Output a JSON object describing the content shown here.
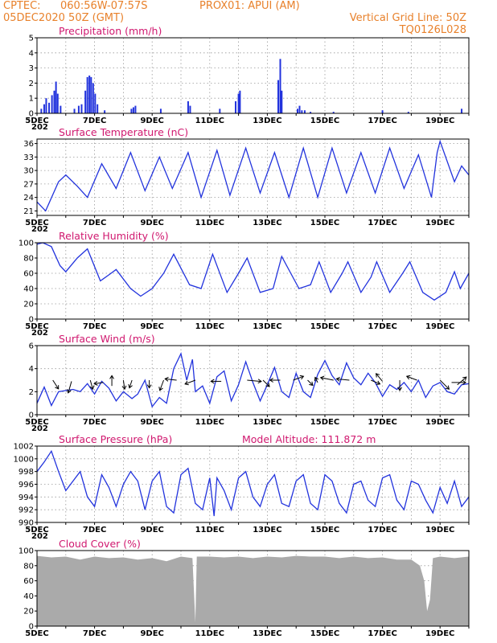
{
  "header": {
    "source": "CPTEC:",
    "location": "060:56W-07:57S",
    "station": "PROX01: APUI (AM)",
    "date": "05DEC2020 50Z (GMT)",
    "grid_note": "Vertical Grid Line: 50Z",
    "code": "TQ0126L028"
  },
  "colors": {
    "header": "#e8812b",
    "title": "#d0186f",
    "series": "#2233dd",
    "cloud": "#aaaaaa",
    "arrow": "#000000"
  },
  "x_axis": {
    "range_days": [
      5,
      20
    ],
    "ticks": [
      {
        "day": 5,
        "label": "5DEC"
      },
      {
        "day": 7,
        "label": "7DEC"
      },
      {
        "day": 9,
        "label": "9DEC"
      },
      {
        "day": 11,
        "label": "11DEC"
      },
      {
        "day": 13,
        "label": "13DEC"
      },
      {
        "day": 15,
        "label": "15DEC"
      },
      {
        "day": 17,
        "label": "17DEC"
      },
      {
        "day": 19,
        "label": "19DEC"
      }
    ],
    "year_stub": "202"
  },
  "chart_data": [
    {
      "id": "precip",
      "type": "bar",
      "title": "Precipitation (mm/h)",
      "ylim": [
        0,
        5
      ],
      "yticks": [
        0,
        1,
        2,
        3,
        4,
        5
      ],
      "points": [
        [
          5.15,
          0.3
        ],
        [
          5.25,
          0.6
        ],
        [
          5.32,
          1.0
        ],
        [
          5.42,
          0.7
        ],
        [
          5.52,
          1.2
        ],
        [
          5.6,
          1.5
        ],
        [
          5.66,
          2.1
        ],
        [
          5.72,
          1.3
        ],
        [
          5.82,
          0.5
        ],
        [
          6.3,
          0.3
        ],
        [
          6.45,
          0.5
        ],
        [
          6.55,
          0.6
        ],
        [
          6.68,
          1.5
        ],
        [
          6.75,
          2.4
        ],
        [
          6.82,
          2.5
        ],
        [
          6.88,
          2.4
        ],
        [
          6.95,
          2.0
        ],
        [
          7.02,
          1.3
        ],
        [
          7.1,
          0.6
        ],
        [
          7.35,
          0.2
        ],
        [
          8.28,
          0.3
        ],
        [
          8.35,
          0.4
        ],
        [
          8.42,
          0.5
        ],
        [
          9.3,
          0.3
        ],
        [
          10.25,
          0.8
        ],
        [
          10.32,
          0.5
        ],
        [
          11.35,
          0.3
        ],
        [
          11.9,
          0.8
        ],
        [
          12.0,
          1.3
        ],
        [
          12.05,
          1.5
        ],
        [
          13.38,
          2.2
        ],
        [
          13.45,
          3.6
        ],
        [
          13.5,
          1.5
        ],
        [
          14.05,
          0.3
        ],
        [
          14.12,
          0.5
        ],
        [
          14.2,
          0.2
        ],
        [
          14.3,
          0.2
        ],
        [
          14.5,
          0.1
        ],
        [
          15.3,
          0.1
        ],
        [
          17.0,
          0.2
        ],
        [
          17.9,
          0.1
        ],
        [
          19.75,
          0.3
        ]
      ]
    },
    {
      "id": "temp",
      "type": "line",
      "title": "Surface Temperature (nC)",
      "ylim": [
        20,
        37
      ],
      "yticks": [
        21,
        24,
        27,
        30,
        33,
        36
      ],
      "points": [
        [
          5.0,
          23.0
        ],
        [
          5.3,
          21.0
        ],
        [
          5.75,
          27.5
        ],
        [
          6.0,
          29.0
        ],
        [
          6.4,
          26.5
        ],
        [
          6.75,
          24.0
        ],
        [
          7.25,
          31.5
        ],
        [
          7.75,
          26.0
        ],
        [
          8.25,
          34.0
        ],
        [
          8.75,
          25.5
        ],
        [
          9.25,
          33.0
        ],
        [
          9.7,
          26.0
        ],
        [
          10.25,
          34.0
        ],
        [
          10.7,
          24.0
        ],
        [
          11.25,
          34.5
        ],
        [
          11.7,
          24.5
        ],
        [
          12.25,
          35.0
        ],
        [
          12.75,
          25.0
        ],
        [
          13.25,
          34.0
        ],
        [
          13.75,
          24.0
        ],
        [
          14.25,
          35.0
        ],
        [
          14.75,
          24.0
        ],
        [
          15.25,
          35.0
        ],
        [
          15.75,
          25.0
        ],
        [
          16.25,
          34.0
        ],
        [
          16.75,
          25.0
        ],
        [
          17.25,
          35.0
        ],
        [
          17.75,
          26.0
        ],
        [
          18.25,
          33.5
        ],
        [
          18.7,
          24.0
        ],
        [
          18.9,
          34.0
        ],
        [
          19.0,
          36.5
        ],
        [
          19.5,
          27.5
        ],
        [
          19.75,
          31.0
        ],
        [
          20.0,
          29.0
        ]
      ]
    },
    {
      "id": "rh",
      "type": "line",
      "title": "Relative Humidity (%)",
      "ylim": [
        0,
        100
      ],
      "yticks": [
        0,
        20,
        40,
        60,
        80,
        100
      ],
      "points": [
        [
          5.0,
          98
        ],
        [
          5.2,
          100
        ],
        [
          5.5,
          95
        ],
        [
          5.8,
          70
        ],
        [
          6.0,
          62
        ],
        [
          6.4,
          80
        ],
        [
          6.75,
          92
        ],
        [
          7.2,
          50
        ],
        [
          7.5,
          58
        ],
        [
          7.75,
          65
        ],
        [
          8.25,
          40
        ],
        [
          8.6,
          30
        ],
        [
          9.0,
          40
        ],
        [
          9.4,
          60
        ],
        [
          9.75,
          85
        ],
        [
          10.3,
          45
        ],
        [
          10.7,
          40
        ],
        [
          11.1,
          85
        ],
        [
          11.6,
          35
        ],
        [
          12.0,
          60
        ],
        [
          12.3,
          80
        ],
        [
          12.75,
          35
        ],
        [
          13.2,
          40
        ],
        [
          13.5,
          82
        ],
        [
          14.1,
          40
        ],
        [
          14.5,
          45
        ],
        [
          14.8,
          75
        ],
        [
          15.2,
          35
        ],
        [
          15.6,
          60
        ],
        [
          15.8,
          75
        ],
        [
          16.25,
          35
        ],
        [
          16.6,
          55
        ],
        [
          16.8,
          75
        ],
        [
          17.25,
          35
        ],
        [
          17.7,
          60
        ],
        [
          17.95,
          75
        ],
        [
          18.4,
          35
        ],
        [
          18.8,
          25
        ],
        [
          19.2,
          35
        ],
        [
          19.5,
          62
        ],
        [
          19.7,
          40
        ],
        [
          20.0,
          60
        ]
      ]
    },
    {
      "id": "wind",
      "type": "line",
      "title": "Surface Wind (m/s)",
      "ylim": [
        0,
        6
      ],
      "yticks": [
        0,
        2,
        4,
        6
      ],
      "points": [
        [
          5.0,
          1.0
        ],
        [
          5.25,
          2.4
        ],
        [
          5.5,
          0.8
        ],
        [
          5.75,
          2.0
        ],
        [
          6.0,
          2.1
        ],
        [
          6.25,
          2.2
        ],
        [
          6.5,
          2.0
        ],
        [
          6.75,
          2.7
        ],
        [
          7.0,
          1.8
        ],
        [
          7.25,
          2.9
        ],
        [
          7.5,
          2.3
        ],
        [
          7.75,
          1.2
        ],
        [
          8.0,
          2.0
        ],
        [
          8.3,
          1.4
        ],
        [
          8.5,
          1.8
        ],
        [
          8.75,
          3.0
        ],
        [
          9.0,
          0.7
        ],
        [
          9.25,
          1.5
        ],
        [
          9.5,
          1.0
        ],
        [
          9.75,
          4.0
        ],
        [
          10.0,
          5.3
        ],
        [
          10.2,
          3.0
        ],
        [
          10.4,
          4.8
        ],
        [
          10.5,
          2.0
        ],
        [
          10.75,
          2.5
        ],
        [
          11.0,
          1.0
        ],
        [
          11.25,
          3.3
        ],
        [
          11.5,
          3.8
        ],
        [
          11.75,
          1.2
        ],
        [
          12.0,
          2.6
        ],
        [
          12.25,
          4.6
        ],
        [
          12.5,
          2.8
        ],
        [
          12.75,
          1.2
        ],
        [
          13.0,
          2.6
        ],
        [
          13.25,
          4.1
        ],
        [
          13.5,
          2.0
        ],
        [
          13.75,
          1.5
        ],
        [
          14.0,
          3.6
        ],
        [
          14.25,
          2.0
        ],
        [
          14.5,
          1.5
        ],
        [
          14.75,
          3.5
        ],
        [
          15.0,
          4.7
        ],
        [
          15.25,
          3.4
        ],
        [
          15.5,
          2.6
        ],
        [
          15.75,
          4.5
        ],
        [
          16.0,
          3.2
        ],
        [
          16.25,
          2.6
        ],
        [
          16.5,
          3.6
        ],
        [
          16.75,
          2.8
        ],
        [
          17.0,
          1.6
        ],
        [
          17.25,
          2.6
        ],
        [
          17.5,
          2.2
        ],
        [
          17.75,
          2.8
        ],
        [
          18.0,
          2.0
        ],
        [
          18.25,
          3.0
        ],
        [
          18.5,
          1.5
        ],
        [
          18.75,
          2.5
        ],
        [
          19.0,
          2.8
        ],
        [
          19.25,
          2.0
        ],
        [
          19.5,
          1.8
        ],
        [
          19.75,
          2.6
        ],
        [
          20.0,
          2.7
        ]
      ],
      "vectors": [
        [
          5.55,
          3.0,
          2.2,
          -3.4
        ],
        [
          6.2,
          2.9,
          -1.3,
          -4.5
        ],
        [
          6.85,
          3.0,
          1.0,
          -3.5
        ],
        [
          7.3,
          2.8,
          -3.5,
          -0.5
        ],
        [
          7.6,
          2.5,
          0.0,
          4.0
        ],
        [
          8.0,
          3.0,
          0.5,
          -3.5
        ],
        [
          8.3,
          3.0,
          -1.0,
          -3.0
        ],
        [
          8.9,
          3.0,
          0.0,
          -3.0
        ],
        [
          9.4,
          3.0,
          -1.5,
          -4.0
        ],
        [
          9.85,
          3.0,
          -4.5,
          0.5
        ],
        [
          10.5,
          3.0,
          -4.0,
          -1.5
        ],
        [
          11.4,
          2.9,
          -4.0,
          0.0
        ],
        [
          12.3,
          3.0,
          5.5,
          -0.5
        ],
        [
          12.85,
          3.0,
          2.5,
          -2.5
        ],
        [
          13.45,
          3.0,
          -4.0,
          0.0
        ],
        [
          13.9,
          3.0,
          4.0,
          1.5
        ],
        [
          14.4,
          3.0,
          2.0,
          -2.0
        ],
        [
          14.75,
          2.8,
          -1.0,
          2.0
        ],
        [
          15.3,
          3.0,
          -5.0,
          1.0
        ],
        [
          15.85,
          3.0,
          -5.0,
          0.5
        ],
        [
          16.6,
          3.0,
          3.5,
          -1.5
        ],
        [
          17.0,
          2.9,
          -2.5,
          3.0
        ],
        [
          17.6,
          3.0,
          0.0,
          -4.0
        ],
        [
          18.2,
          3.0,
          -4.0,
          1.5
        ],
        [
          19.0,
          3.0,
          3.5,
          -3.5
        ],
        [
          19.4,
          2.8,
          5.5,
          0.0
        ],
        [
          19.6,
          2.6,
          3.5,
          3.0
        ]
      ]
    },
    {
      "id": "pres",
      "type": "line",
      "title": "Surface Pressure (hPa)",
      "annotation": "Model Altitude: 111.872 m",
      "ylim": [
        990,
        1002
      ],
      "yticks": [
        990,
        992,
        994,
        996,
        998,
        1000,
        1002
      ],
      "points": [
        [
          5.0,
          998.0
        ],
        [
          5.25,
          999.5
        ],
        [
          5.5,
          1001.2
        ],
        [
          5.75,
          998.0
        ],
        [
          6.0,
          995.0
        ],
        [
          6.25,
          996.5
        ],
        [
          6.5,
          998.0
        ],
        [
          6.75,
          994.0
        ],
        [
          7.0,
          992.5
        ],
        [
          7.25,
          997.5
        ],
        [
          7.5,
          995.5
        ],
        [
          7.75,
          992.5
        ],
        [
          8.0,
          996.0
        ],
        [
          8.25,
          998.0
        ],
        [
          8.5,
          996.5
        ],
        [
          8.75,
          992.0
        ],
        [
          9.0,
          996.5
        ],
        [
          9.25,
          998.0
        ],
        [
          9.5,
          992.5
        ],
        [
          9.75,
          991.5
        ],
        [
          10.0,
          997.5
        ],
        [
          10.25,
          998.5
        ],
        [
          10.5,
          993.0
        ],
        [
          10.75,
          992.0
        ],
        [
          11.0,
          997.0
        ],
        [
          11.15,
          991.0
        ],
        [
          11.25,
          997.0
        ],
        [
          11.5,
          995.0
        ],
        [
          11.75,
          992.0
        ],
        [
          12.0,
          997.0
        ],
        [
          12.25,
          998.0
        ],
        [
          12.5,
          994.0
        ],
        [
          12.75,
          992.5
        ],
        [
          13.0,
          996.0
        ],
        [
          13.25,
          997.5
        ],
        [
          13.5,
          993.0
        ],
        [
          13.75,
          992.5
        ],
        [
          14.0,
          996.5
        ],
        [
          14.25,
          997.5
        ],
        [
          14.5,
          993.0
        ],
        [
          14.75,
          992.0
        ],
        [
          15.0,
          997.5
        ],
        [
          15.25,
          996.5
        ],
        [
          15.5,
          993.0
        ],
        [
          15.75,
          991.5
        ],
        [
          16.0,
          996.0
        ],
        [
          16.25,
          996.5
        ],
        [
          16.5,
          993.5
        ],
        [
          16.75,
          992.5
        ],
        [
          17.0,
          997.0
        ],
        [
          17.25,
          997.5
        ],
        [
          17.5,
          993.5
        ],
        [
          17.75,
          992.0
        ],
        [
          18.0,
          996.5
        ],
        [
          18.25,
          996.0
        ],
        [
          18.5,
          993.5
        ],
        [
          18.75,
          991.5
        ],
        [
          19.0,
          995.5
        ],
        [
          19.25,
          993.0
        ],
        [
          19.5,
          996.5
        ],
        [
          19.75,
          992.5
        ],
        [
          20.0,
          994.0
        ]
      ]
    },
    {
      "id": "cloud",
      "type": "area",
      "title": "Cloud Cover (%)",
      "ylim": [
        0,
        100
      ],
      "yticks": [
        0,
        20,
        40,
        60,
        80,
        100
      ],
      "points": [
        [
          5.0,
          93
        ],
        [
          5.5,
          91
        ],
        [
          6.0,
          92
        ],
        [
          6.5,
          88
        ],
        [
          7.0,
          92
        ],
        [
          7.5,
          90
        ],
        [
          8.0,
          91
        ],
        [
          8.5,
          88
        ],
        [
          9.0,
          90
        ],
        [
          9.5,
          86
        ],
        [
          10.0,
          92
        ],
        [
          10.4,
          90
        ],
        [
          10.5,
          5
        ],
        [
          10.55,
          92
        ],
        [
          11.0,
          92
        ],
        [
          11.5,
          91
        ],
        [
          12.0,
          92
        ],
        [
          12.5,
          90
        ],
        [
          13.0,
          92
        ],
        [
          13.5,
          91
        ],
        [
          14.0,
          93
        ],
        [
          14.5,
          92
        ],
        [
          15.0,
          92
        ],
        [
          15.5,
          90
        ],
        [
          16.0,
          92
        ],
        [
          16.5,
          90
        ],
        [
          17.0,
          91
        ],
        [
          17.5,
          88
        ],
        [
          18.0,
          88
        ],
        [
          18.3,
          80
        ],
        [
          18.45,
          60
        ],
        [
          18.55,
          20
        ],
        [
          18.65,
          35
        ],
        [
          18.75,
          90
        ],
        [
          19.0,
          92
        ],
        [
          19.5,
          90
        ],
        [
          20.0,
          92
        ]
      ]
    }
  ]
}
